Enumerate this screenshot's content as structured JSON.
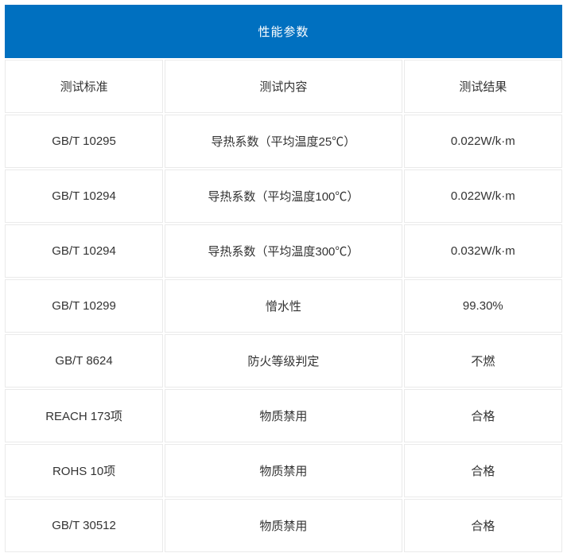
{
  "table": {
    "title": "性能参数",
    "title_bg": "#0070c0",
    "title_color": "#ffffff",
    "cell_text_color": "#333333",
    "border_color": "#eaeaea",
    "columns": [
      "测试标准",
      "测试内容",
      "测试结果"
    ],
    "rows": [
      [
        "GB/T 10295",
        "导热系数（平均温度25℃）",
        "0.022W/k·m"
      ],
      [
        "GB/T 10294",
        "导热系数（平均温度100℃）",
        "0.022W/k·m"
      ],
      [
        "GB/T 10294",
        "导热系数（平均温度300℃）",
        "0.032W/k·m"
      ],
      [
        "GB/T 10299",
        "憎水性",
        "99.30%"
      ],
      [
        "GB/T 8624",
        "防火等级判定",
        "不燃"
      ],
      [
        "REACH 173项",
        "物质禁用",
        "合格"
      ],
      [
        "ROHS 10项",
        "物质禁用",
        "合格"
      ],
      [
        "GB/T 30512",
        "物质禁用",
        "合格"
      ]
    ]
  }
}
